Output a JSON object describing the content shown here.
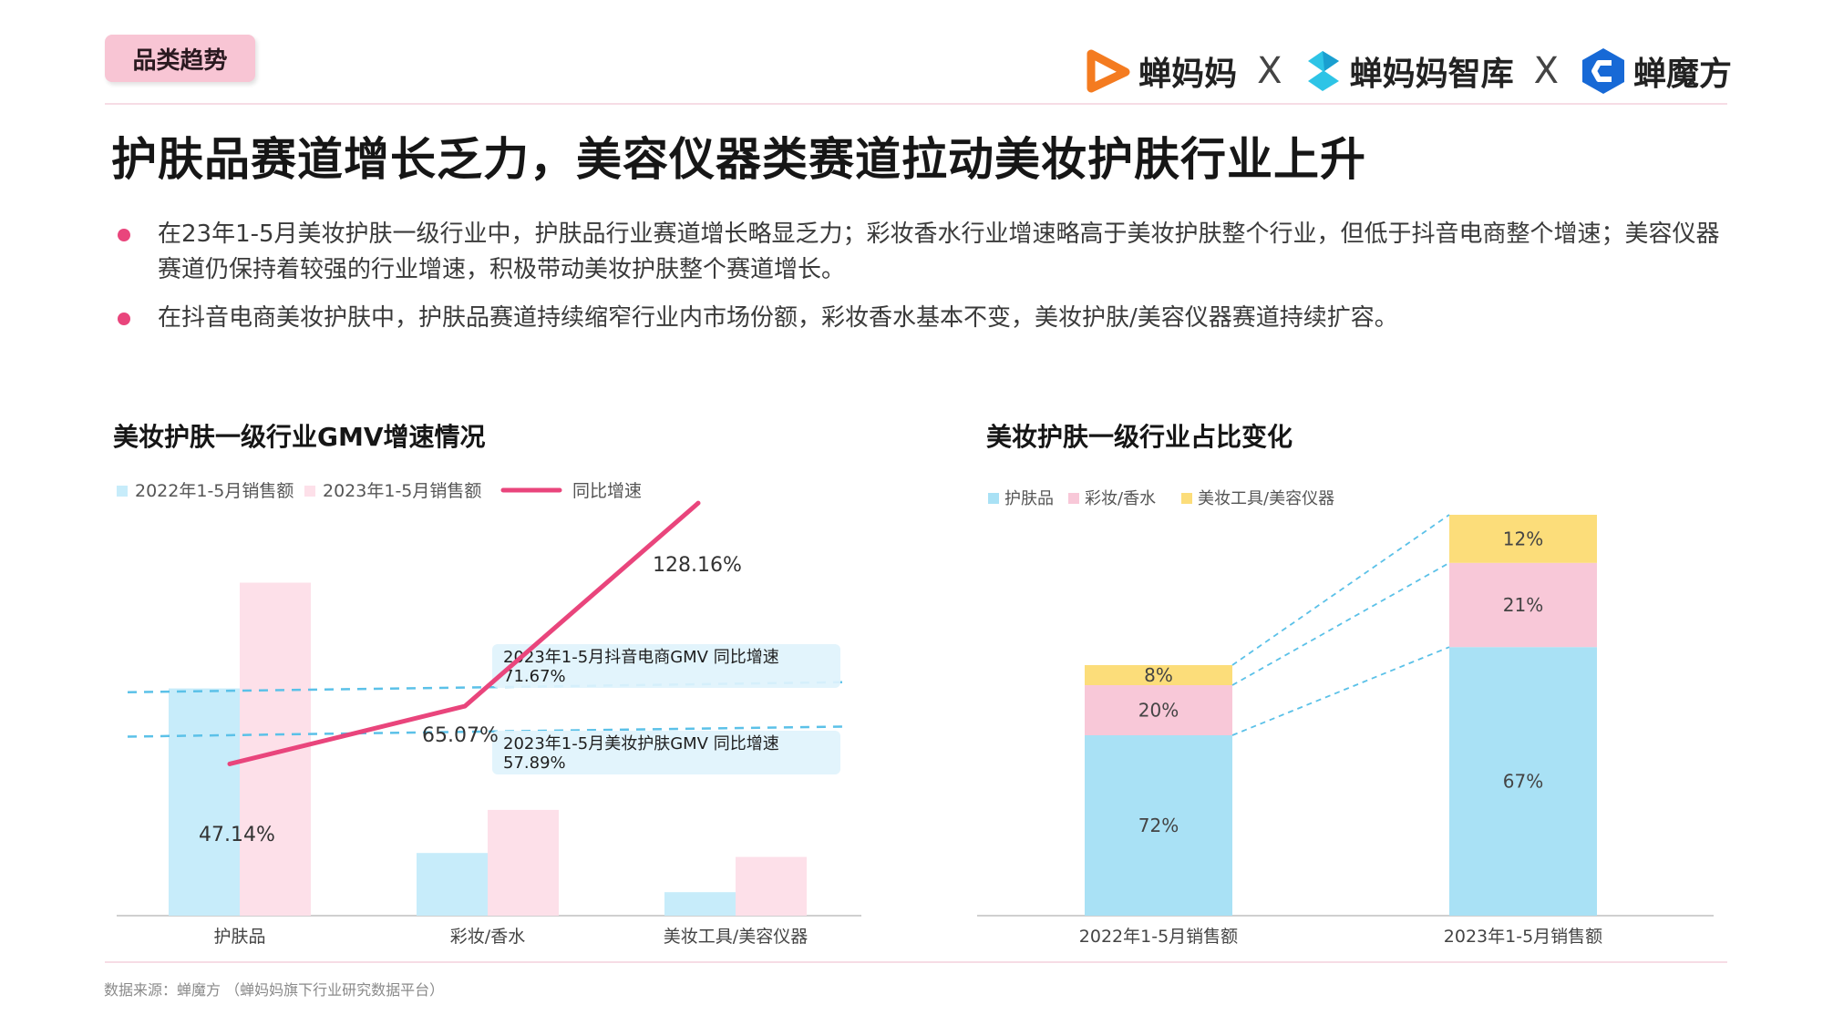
{
  "tag": "品类趋势",
  "brands": [
    "蝉妈妈",
    "蝉妈妈智库",
    "蝉魔方"
  ],
  "brand_separator": "X",
  "headline": "护肤品赛道增长乏力，美容仪器类赛道拉动美妆护肤行业上升",
  "bullets": [
    "在23年1-5月美妆护肤一级行业中，护肤品行业赛道增长略显乏力；彩妆香水行业增速略高于美妆护肤整个行业，但低于抖音电商整个增速；美容仪器赛道仍保持着较强的行业增速，积极带动美妆护肤整个赛道增长。",
    "在抖音电商美妆护肤中，护肤品赛道持续缩窄行业内市场份额，彩妆香水基本不变，美妆护肤/美容仪器赛道持续扩容。"
  ],
  "source": "数据来源：蝉魔方 （蝉妈妈旗下行业研究数据平台）",
  "colors": {
    "accent": "#e9457c",
    "blue": "#a9e1f5",
    "light_blue": "#c7ecfa",
    "pink": "#f8c8d8",
    "light_pink": "#fde0e9",
    "yellow": "#fcdd7a",
    "ref_line": "#5bc1e8",
    "ref_box": "#e0f3fc"
  },
  "chart_data": [
    {
      "type": "bar",
      "title": "美妆护肤一级行业GMV增速情况",
      "categories": [
        "护肤品",
        "彩妆/香水",
        "美妆工具/美容仪器"
      ],
      "series": [
        {
          "name": "2022年1-5月销售额",
          "values": [
            58,
            16,
            6
          ]
        },
        {
          "name": "2023年1-5月销售额",
          "values": [
            85,
            27,
            15
          ]
        }
      ],
      "line_series": {
        "name": "同比增速",
        "values": [
          47.14,
          65.07,
          128.16
        ],
        "labels": [
          "47.14%",
          "65.07%",
          "128.16%"
        ]
      },
      "reference_lines": [
        {
          "label": "2023年1-5月抖音电商GMV 同比增速",
          "value": 71.67,
          "value_label": "71.67%"
        },
        {
          "label": "2023年1-5月美妆护肤GMV 同比增速",
          "value": 57.89,
          "value_label": "57.89%"
        }
      ],
      "line_ylim": [
        0,
        150
      ],
      "bar_ylim": [
        0,
        100
      ],
      "legend": "top-left"
    },
    {
      "type": "bar",
      "stacked": true,
      "title": "美妆护肤一级行业占比变化",
      "categories": [
        "2022年1-5月销售额",
        "2023年1-5月销售额"
      ],
      "series": [
        {
          "name": "护肤品",
          "values": [
            72,
            67
          ],
          "labels": [
            "72%",
            "67%"
          ]
        },
        {
          "name": "彩妆/香水",
          "values": [
            20,
            21
          ],
          "labels": [
            "20%",
            "21%"
          ]
        },
        {
          "name": "美妆工具/美容仪器",
          "values": [
            8,
            12
          ],
          "labels": [
            "8%",
            "12%"
          ]
        }
      ],
      "ylim": [
        0,
        100
      ],
      "legend": "top-left"
    }
  ]
}
